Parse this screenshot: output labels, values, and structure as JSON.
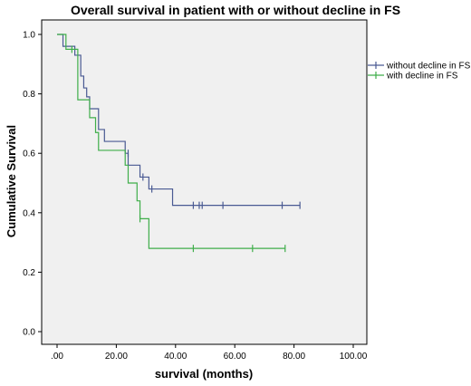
{
  "chart_data": {
    "type": "line",
    "title": "Overall survival in patient with or without decline in FS",
    "xlabel": "survival (months)",
    "ylabel": "Cumulative Survival",
    "xlim": [
      0,
      100
    ],
    "ylim": [
      0,
      1.0
    ],
    "x_ticks": [
      0,
      20,
      40,
      60,
      80,
      100
    ],
    "x_tick_labels": [
      ".00",
      "20.00",
      "40.00",
      "60.00",
      "80.00",
      "100.00"
    ],
    "y_ticks": [
      0,
      0.2,
      0.4,
      0.6,
      0.8,
      1.0
    ],
    "y_tick_labels": [
      "0.0",
      "0.2",
      "0.4",
      "0.6",
      "0.8",
      "1.0"
    ],
    "grid": false,
    "legend_position": "right",
    "series": [
      {
        "name": "without decline in FS",
        "color": "#4a5a93",
        "steps": [
          [
            0,
            1.0
          ],
          [
            2,
            0.96
          ],
          [
            6,
            0.93
          ],
          [
            8,
            0.86
          ],
          [
            9,
            0.82
          ],
          [
            10,
            0.79
          ],
          [
            11,
            0.75
          ],
          [
            14,
            0.68
          ],
          [
            16,
            0.64
          ],
          [
            23,
            0.6
          ],
          [
            24,
            0.56
          ],
          [
            28,
            0.52
          ],
          [
            31,
            0.48
          ],
          [
            39,
            0.425
          ],
          [
            82,
            0.425
          ]
        ],
        "censors": [
          [
            24,
            0.6
          ],
          [
            29,
            0.52
          ],
          [
            32,
            0.48
          ],
          [
            46,
            0.425
          ],
          [
            48,
            0.425
          ],
          [
            49,
            0.425
          ],
          [
            56,
            0.425
          ],
          [
            76,
            0.425
          ],
          [
            82,
            0.425
          ]
        ]
      },
      {
        "name": "with decline in FS",
        "color": "#3fae4a",
        "steps": [
          [
            0,
            1.0
          ],
          [
            3,
            0.95
          ],
          [
            7,
            0.78
          ],
          [
            11,
            0.72
          ],
          [
            13,
            0.67
          ],
          [
            14,
            0.61
          ],
          [
            23,
            0.56
          ],
          [
            24,
            0.5
          ],
          [
            27,
            0.44
          ],
          [
            28,
            0.38
          ],
          [
            31,
            0.28
          ],
          [
            77,
            0.28
          ]
        ],
        "censors": [
          [
            5,
            0.95
          ],
          [
            28,
            0.38
          ],
          [
            46,
            0.28
          ],
          [
            66,
            0.28
          ],
          [
            77,
            0.28
          ]
        ]
      }
    ]
  }
}
